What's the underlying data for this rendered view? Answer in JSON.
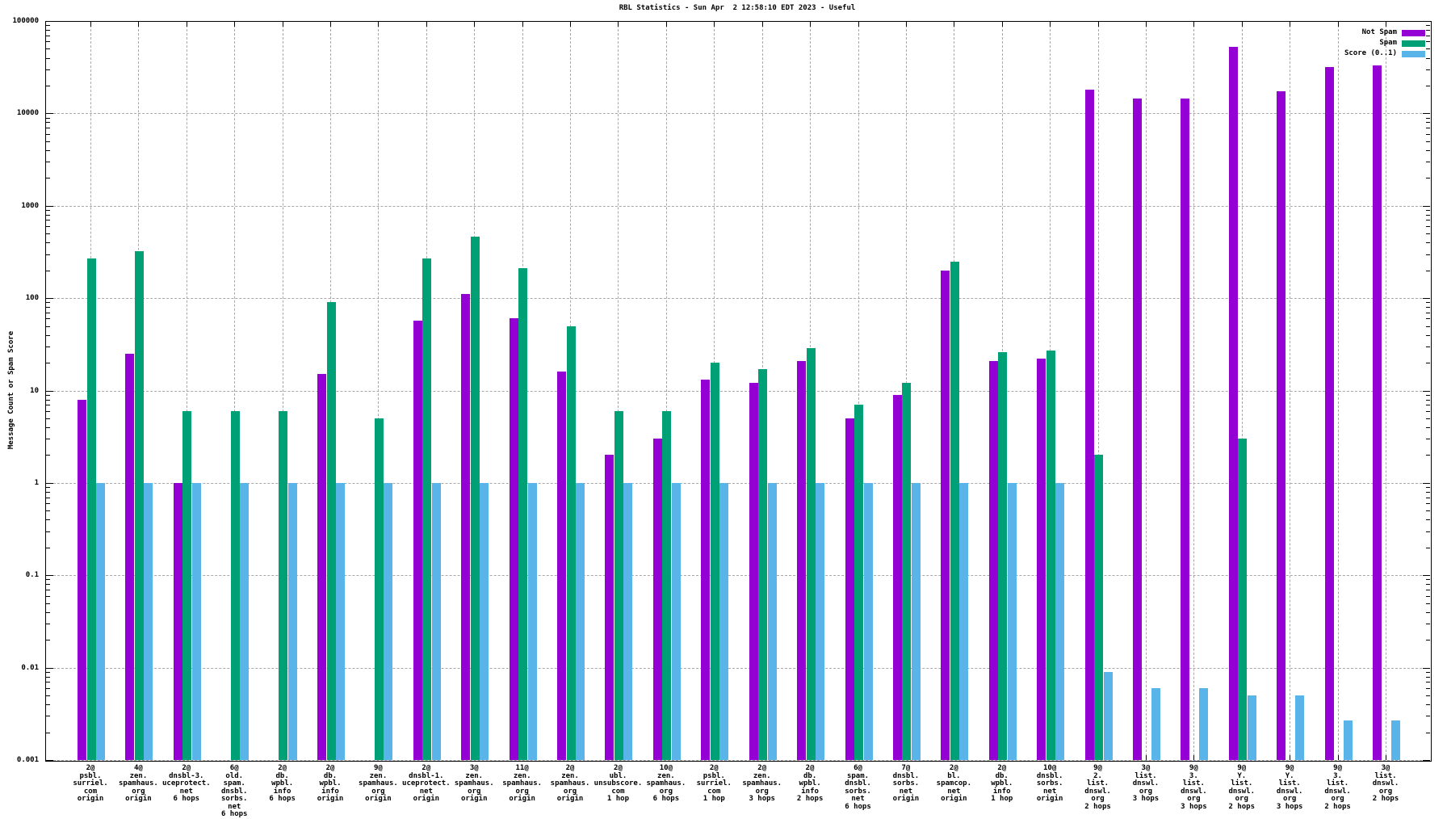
{
  "title": "RBL Statistics - Sun Apr  2 12:58:10 EDT 2023 - Useful",
  "y_axis": {
    "label": "Message Count or Spam Score",
    "ticks": [
      {
        "label": "100000",
        "value": 100000
      },
      {
        "label": "10000",
        "value": 10000
      },
      {
        "label": "1000",
        "value": 1000
      },
      {
        "label": "100",
        "value": 100
      },
      {
        "label": "10",
        "value": 10
      },
      {
        "label": "1",
        "value": 1
      },
      {
        "label": "0.1",
        "value": 0.1
      },
      {
        "label": "0.01",
        "value": 0.01
      },
      {
        "label": "0.001",
        "value": 0.001
      }
    ]
  },
  "chart_data": {
    "type": "bar",
    "scale": "log",
    "grid": "dashed",
    "legend_position": "top-right",
    "title": "RBL Statistics - Sun Apr  2 12:58:10 EDT 2023 - Useful",
    "ylabel": "Message Count or Spam Score",
    "ylim": [
      0.001,
      100000
    ],
    "categories": [
      [
        "2@",
        "psbl.",
        "surriel.",
        "com",
        "origin"
      ],
      [
        "4@",
        "zen.",
        "spamhaus.",
        "org",
        "origin"
      ],
      [
        "2@",
        "dnsbl-3.",
        "uceprotect.",
        "net",
        "6 hops"
      ],
      [
        "6@",
        "old.",
        "spam.",
        "dnsbl.",
        "sorbs.",
        "net",
        "6 hops"
      ],
      [
        "2@",
        "db.",
        "wpbl.",
        "info",
        "6 hops"
      ],
      [
        "2@",
        "db.",
        "wpbl.",
        "info",
        "origin"
      ],
      [
        "9@",
        "zen.",
        "spamhaus.",
        "org",
        "origin"
      ],
      [
        "2@",
        "dnsbl-1.",
        "uceprotect.",
        "net",
        "origin"
      ],
      [
        "3@",
        "zen.",
        "spamhaus.",
        "org",
        "origin"
      ],
      [
        "11@",
        "zen.",
        "spamhaus.",
        "org",
        "origin"
      ],
      [
        "2@",
        "zen.",
        "spamhaus.",
        "org",
        "origin"
      ],
      [
        "2@",
        "ubl.",
        "unsubscore.",
        "com",
        "1 hop"
      ],
      [
        "10@",
        "zen.",
        "spamhaus.",
        "org",
        "6 hops"
      ],
      [
        "2@",
        "psbl.",
        "surriel.",
        "com",
        "1 hop"
      ],
      [
        "2@",
        "zen.",
        "spamhaus.",
        "org",
        "3 hops"
      ],
      [
        "2@",
        "db.",
        "wpbl.",
        "info",
        "2 hops"
      ],
      [
        "6@",
        "spam.",
        "dnsbl.",
        "sorbs.",
        "net",
        "6 hops"
      ],
      [
        "7@",
        "dnsbl.",
        "sorbs.",
        "net",
        "origin"
      ],
      [
        "2@",
        "bl.",
        "spamcop.",
        "net",
        "origin"
      ],
      [
        "2@",
        "db.",
        "wpbl.",
        "info",
        "1 hop"
      ],
      [
        "10@",
        "dnsbl.",
        "sorbs.",
        "net",
        "origin"
      ],
      [
        "9@",
        "2.",
        "list.",
        "dnswl.",
        "org",
        "2 hops"
      ],
      [
        "3@",
        "list.",
        "dnswl.",
        "org",
        "3 hops"
      ],
      [
        "9@",
        "3.",
        "list.",
        "dnswl.",
        "org",
        "3 hops"
      ],
      [
        "9@",
        "Y.",
        "list.",
        "dnswl.",
        "org",
        "2 hops"
      ],
      [
        "9@",
        "Y.",
        "list.",
        "dnswl.",
        "org",
        "3 hops"
      ],
      [
        "9@",
        "3.",
        "list.",
        "dnswl.",
        "org",
        "2 hops"
      ],
      [
        "3@",
        "list.",
        "dnswl.",
        "org",
        "2 hops"
      ]
    ],
    "series": [
      {
        "name": "Not Spam",
        "color": "#9400d3",
        "values": [
          8,
          25,
          1,
          null,
          null,
          15,
          null,
          57,
          110,
          60,
          16,
          2,
          3,
          13,
          12,
          21,
          5,
          9,
          200,
          21,
          22,
          18000,
          14500,
          14500,
          52000,
          17500,
          32000,
          33000
        ]
      },
      {
        "name": "Spam",
        "color": "#00a077",
        "values": [
          270,
          320,
          6,
          6,
          6,
          90,
          5,
          270,
          460,
          210,
          50,
          6,
          6,
          20,
          17,
          29,
          7,
          12,
          250,
          26,
          27,
          2,
          null,
          null,
          3,
          null,
          null,
          null
        ]
      },
      {
        "name": "Score (0..1)",
        "color": "#58b4e9",
        "values": [
          1,
          1,
          1,
          1,
          1,
          1,
          1,
          1,
          1,
          1,
          1,
          1,
          1,
          1,
          1,
          1,
          1,
          1,
          1,
          1,
          1,
          0.009,
          0.006,
          0.006,
          0.005,
          0.005,
          0.0027,
          0.0027
        ]
      }
    ]
  }
}
